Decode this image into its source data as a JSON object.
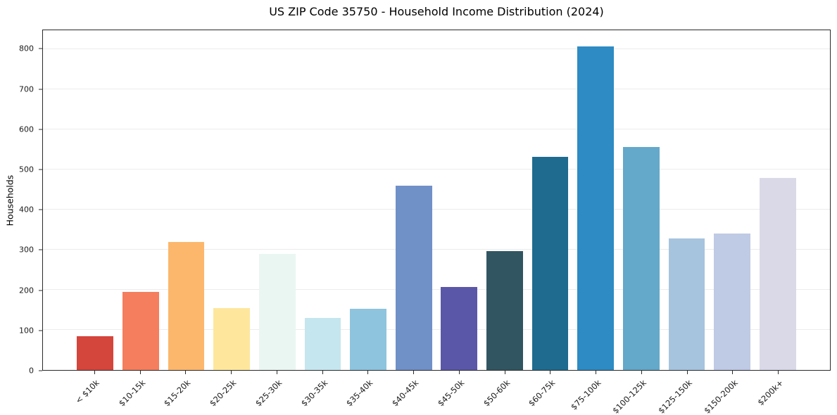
{
  "chart_data": {
    "type": "bar",
    "title": "US ZIP Code 35750 - Household Income Distribution (2024)",
    "xlabel": "",
    "ylabel": "Households",
    "categories": [
      "< $10k",
      "$10-15k",
      "$15-20k",
      "$20-25k",
      "$25-30k",
      "$30-35k",
      "$35-40k",
      "$40-45k",
      "$45-50k",
      "$50-60k",
      "$60-75k",
      "$75-100k",
      "$100-125k",
      "$125-150k",
      "$150-200k",
      "$200k+"
    ],
    "values": [
      85,
      195,
      320,
      155,
      290,
      130,
      152,
      460,
      207,
      297,
      532,
      808,
      557,
      328,
      340,
      480
    ],
    "bar_colors": [
      "#d4453c",
      "#f47e5d",
      "#fcb76d",
      "#fee79d",
      "#eaf6f2",
      "#c6e6ef",
      "#8ec4de",
      "#7090c8",
      "#5b57a8",
      "#315661",
      "#1f6b8f",
      "#2e8bc3",
      "#64a8ca",
      "#a7c4de",
      "#bfcae5",
      "#d9d9e8"
    ],
    "yticks": [
      0,
      100,
      200,
      300,
      400,
      500,
      600,
      700,
      800
    ],
    "ylim": [
      0,
      848
    ],
    "grid": "horizontal",
    "legend": "none",
    "x_tick_rotation": 45
  }
}
